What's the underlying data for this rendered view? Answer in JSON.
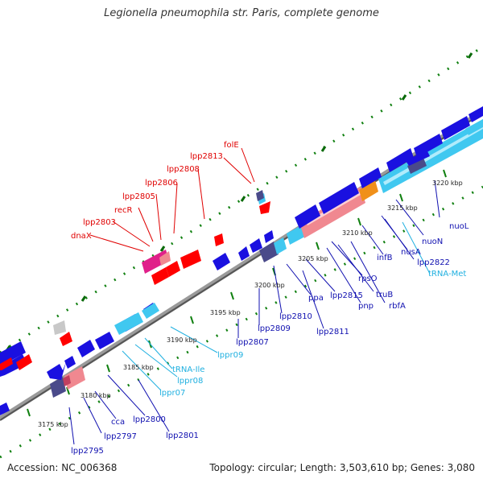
{
  "title": "Legionella pneumophila str. Paris, complete genome",
  "footer": {
    "accession": "Accession: NC_006368",
    "summary": "Topology: circular; Length: 3,503,610 bp; Genes: 3,080"
  },
  "colors": {
    "red_labels": "#e00000",
    "blue_labels": "#1010b0",
    "cyan_labels": "#20b0e0",
    "backbone": "#808080",
    "gene_blue": "#1a10e0",
    "gene_red": "#ff0000",
    "gene_cyan": "#40c8f0",
    "gene_pink": "#f08890",
    "gene_magenta": "#e0208a",
    "gene_slate": "#4a4a8a",
    "gene_orange": "#f0901a",
    "gene_gray": "#c8c8c8",
    "dotted_track": "#108010"
  },
  "tick_labels": [
    "3175 kbp",
    "3180 kbp",
    "3185 kbp",
    "3190 kbp",
    "3195 kbp",
    "3200 kbp",
    "3205 kbp",
    "3210 kbp",
    "3215 kbp",
    "3220 kbp"
  ],
  "genes": {
    "red": [
      "folE",
      "lpp2813",
      "lpp2808",
      "lpp2806",
      "lpp2805",
      "recR",
      "lpp2803",
      "dnaX"
    ],
    "blue": [
      "nuoL",
      "nuoN",
      "nusA",
      "lpp2822",
      "infB",
      "rpsO",
      "truB",
      "rbfA",
      "pnp",
      "lpp2815",
      "ppa",
      "lpp2810",
      "lpp2811",
      "lpp2809",
      "lpp2807",
      "lpp2800",
      "lpp2801",
      "cca",
      "lpp2797",
      "lpp2795"
    ],
    "cyan": [
      "tRNA-Met",
      "lppr09",
      "tRNA-Ile",
      "lppr08",
      "lppr07"
    ]
  }
}
